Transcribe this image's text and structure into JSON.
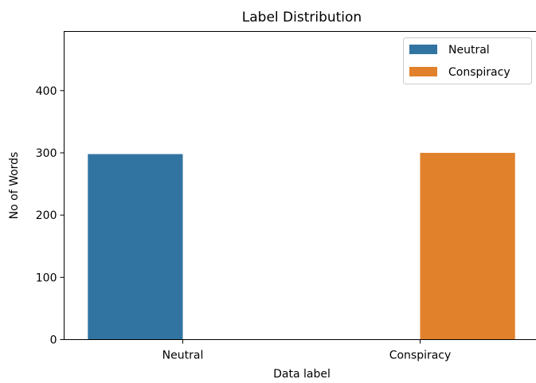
{
  "chart_data": {
    "type": "bar",
    "title": "Label Distribution",
    "xlabel": "Data label",
    "ylabel": "No of Words",
    "categories": [
      "Neutral",
      "Conspiracy"
    ],
    "series": [
      {
        "name": "Neutral",
        "color": "#3274a1",
        "values": [
          298,
          null
        ]
      },
      {
        "name": "Conspiracy",
        "color": "#e1812c",
        "values": [
          null,
          300
        ]
      }
    ],
    "ylim": [
      0,
      495
    ],
    "yticks": [
      0,
      100,
      200,
      300,
      400
    ],
    "grid": false,
    "legend_position": "top-right"
  }
}
